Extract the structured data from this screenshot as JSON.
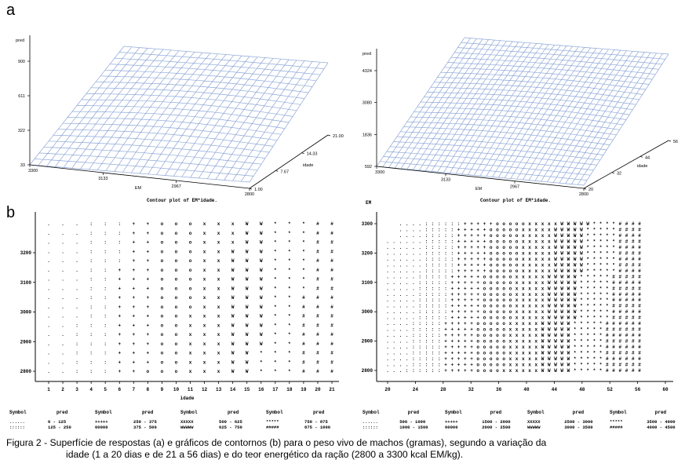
{
  "figure": {
    "panel_a_label": "a",
    "panel_b_label": "b",
    "caption_line1": "Figura 2 - Superfície de respostas (a) e gráficos de contornos (b) para o peso vivo de machos (gramas), segundo a variação da",
    "caption_line2": "idade (1 a 20 dias e de 21 a 56 dias) e do teor energético da ração (2800 a 3300 kcal EM/kg)."
  },
  "chart_data": [
    {
      "type": "surface",
      "panel": "a-left",
      "zlabel": "pred",
      "z_ticks": [
        "33",
        "322",
        "611",
        "900"
      ],
      "x_label": "EM",
      "x_ticks": [
        "3300",
        "3133",
        "2967",
        "2800"
      ],
      "y_label": "idade",
      "y_ticks": [
        "1.00",
        "7.67",
        "14.33",
        "21.00"
      ],
      "subtitle": "Contour plot of EM*idade."
    },
    {
      "type": "surface",
      "panel": "a-right",
      "zlabel": "pred",
      "z_ticks": [
        "592",
        "1836",
        "3080",
        "4324"
      ],
      "x_label": "EM",
      "x_ticks": [
        "3300",
        "3133",
        "2967",
        "2800"
      ],
      "y_label": "idade",
      "y_ticks": [
        "20",
        "32",
        "44",
        "56"
      ],
      "subtitle": "Contour plot of EM*idade."
    },
    {
      "type": "contour",
      "panel": "b-left",
      "xlabel": "idade",
      "x_ticks": [
        "1",
        "2",
        "3",
        "4",
        "5",
        "6",
        "7",
        "8",
        "9",
        "10",
        "11",
        "12",
        "13",
        "14",
        "15",
        "16",
        "17",
        "18",
        "19",
        "20",
        "21"
      ],
      "y_ticks": [
        "2800",
        "2900",
        "3000",
        "3100",
        "3200"
      ],
      "legend": [
        {
          "symbol": "......",
          "range": "0 - 125"
        },
        {
          "symbol": "::::::",
          "range": "125 - 250"
        },
        {
          "symbol": "+++++",
          "range": "250 - 375"
        },
        {
          "symbol": "00000",
          "range": "375 - 500"
        },
        {
          "symbol": "XXXXX",
          "range": "500 - 625"
        },
        {
          "symbol": "WWWWW",
          "range": "625 - 750"
        },
        {
          "symbol": "*****",
          "range": "750 - 875"
        },
        {
          "symbol": "#####",
          "range": "875 - 1000"
        }
      ]
    },
    {
      "type": "contour",
      "panel": "b-right",
      "ylabel": "EM",
      "x_ticks": [
        "20",
        "24",
        "28",
        "32",
        "36",
        "40",
        "44",
        "48",
        "52",
        "56",
        "60"
      ],
      "y_ticks": [
        "2800",
        "2900",
        "3000",
        "3100",
        "3200",
        "3300"
      ],
      "legend": [
        {
          "symbol": "......",
          "range": "500 - 1000"
        },
        {
          "symbol": "::::::",
          "range": "1000 - 1500"
        },
        {
          "symbol": "+++++",
          "range": "1500 - 2000"
        },
        {
          "symbol": "00000",
          "range": "2000 - 2500"
        },
        {
          "symbol": "XXXXX",
          "range": "2500 - 3000"
        },
        {
          "symbol": "WWWWW",
          "range": "3000 - 3500"
        },
        {
          "symbol": "*****",
          "range": "3500 - 4000"
        },
        {
          "symbol": "#####",
          "range": "4000 - 4500"
        }
      ]
    }
  ],
  "legend_headers": {
    "symbol": "Symbol",
    "pred": "pred"
  },
  "colors": {
    "mesh": "#8ea7d8",
    "axis": "#000000"
  }
}
